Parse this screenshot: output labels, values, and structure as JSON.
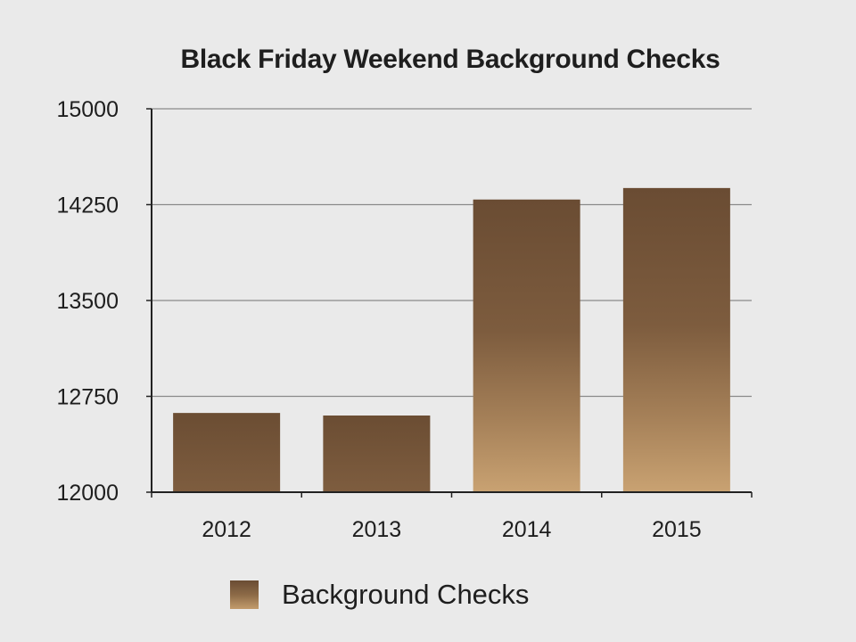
{
  "chart_data": {
    "type": "bar",
    "title": "Black Friday Weekend Background Checks",
    "xlabel": "",
    "ylabel": "",
    "categories": [
      "2012",
      "2013",
      "2014",
      "2015"
    ],
    "series": [
      {
        "name": "Background Checks",
        "values": [
          12620,
          12600,
          14290,
          14380
        ]
      }
    ],
    "ylim": [
      12000,
      15000
    ],
    "yticks": [
      "12000",
      "12750",
      "13500",
      "14250",
      "15000"
    ],
    "grid": true,
    "legend": "bottom",
    "colors": {
      "bar_top": "#6a4c33",
      "bar_bottom": "#c9a272",
      "axis": "#222222",
      "grid": "#8a8a8a",
      "background": "#eaeaea"
    }
  }
}
